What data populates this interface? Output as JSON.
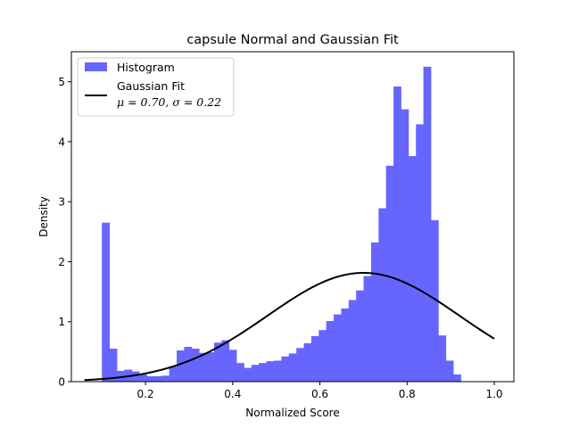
{
  "chart_data": {
    "type": "bar",
    "title": "capsule Normal and Gaussian Fit",
    "xlabel": "Normalized Score",
    "ylabel": "Density",
    "xlim": [
      0.03,
      1.045
    ],
    "ylim": [
      0,
      5.5
    ],
    "xticks": [
      "0.2",
      "0.4",
      "0.6",
      "0.8",
      "1.0"
    ],
    "yticks": [
      "0",
      "1",
      "2",
      "3",
      "4",
      "5"
    ],
    "grid": false,
    "legend_position": "top-left",
    "histogram": {
      "name": "Histogram",
      "color": "#6666ff",
      "bin_start": 0.1,
      "bin_width": 0.01715,
      "densities": [
        2.65,
        0.55,
        0.18,
        0.2,
        0.17,
        0.12,
        0.09,
        0.09,
        0.1,
        0.25,
        0.52,
        0.58,
        0.55,
        0.48,
        0.49,
        0.65,
        0.69,
        0.53,
        0.31,
        0.23,
        0.28,
        0.31,
        0.34,
        0.35,
        0.42,
        0.47,
        0.56,
        0.64,
        0.76,
        0.86,
        1.01,
        1.12,
        1.22,
        1.36,
        1.52,
        1.76,
        2.32,
        2.89,
        3.6,
        4.92,
        4.54,
        3.76,
        4.29,
        5.25,
        2.69,
        0.77,
        0.35,
        0.12
      ]
    },
    "gaussian": {
      "name": "Gaussian Fit",
      "params_label": "μ = 0.70,  σ = 0.22",
      "mu": 0.7,
      "sigma": 0.22,
      "x_range": [
        0.06,
        1.0
      ],
      "color": "#000000"
    }
  }
}
